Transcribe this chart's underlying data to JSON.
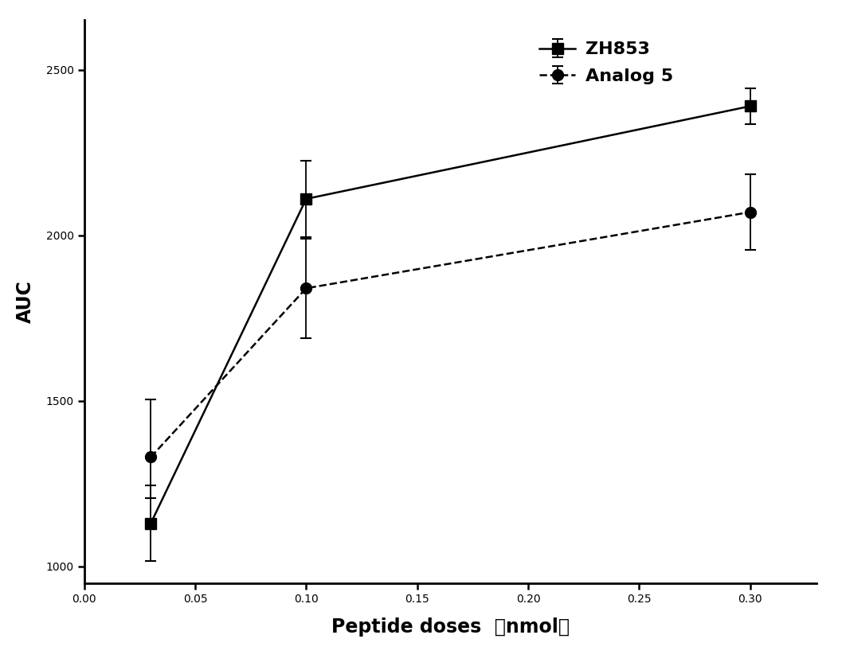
{
  "ZH853": {
    "x": [
      0.03,
      0.1,
      0.3
    ],
    "y": [
      1130,
      2110,
      2390
    ],
    "yerr_upper": [
      115,
      115,
      55
    ],
    "yerr_lower": [
      115,
      115,
      55
    ],
    "color": "black",
    "linestyle": "-",
    "marker": "s",
    "markersize": 10,
    "label": "ZH853"
  },
  "Analog5": {
    "x": [
      0.03,
      0.1,
      0.3
    ],
    "y": [
      1330,
      1840,
      2070
    ],
    "yerr_upper": [
      175,
      150,
      115
    ],
    "yerr_lower": [
      125,
      150,
      115
    ],
    "color": "black",
    "linestyle": "--",
    "marker": "o",
    "markersize": 10,
    "label": "Analog 5"
  },
  "xlabel": "Peptide doses  （nmol）",
  "ylabel": "AUC",
  "xlim": [
    0.0,
    0.33
  ],
  "ylim": [
    950,
    2650
  ],
  "xticks": [
    0.0,
    0.05,
    0.1,
    0.15,
    0.2,
    0.25,
    0.3
  ],
  "yticks": [
    1000,
    1500,
    2000,
    2500
  ],
  "background_color": "#ffffff",
  "axis_color": "black",
  "figsize": [
    10.57,
    8.42
  ],
  "dpi": 100
}
